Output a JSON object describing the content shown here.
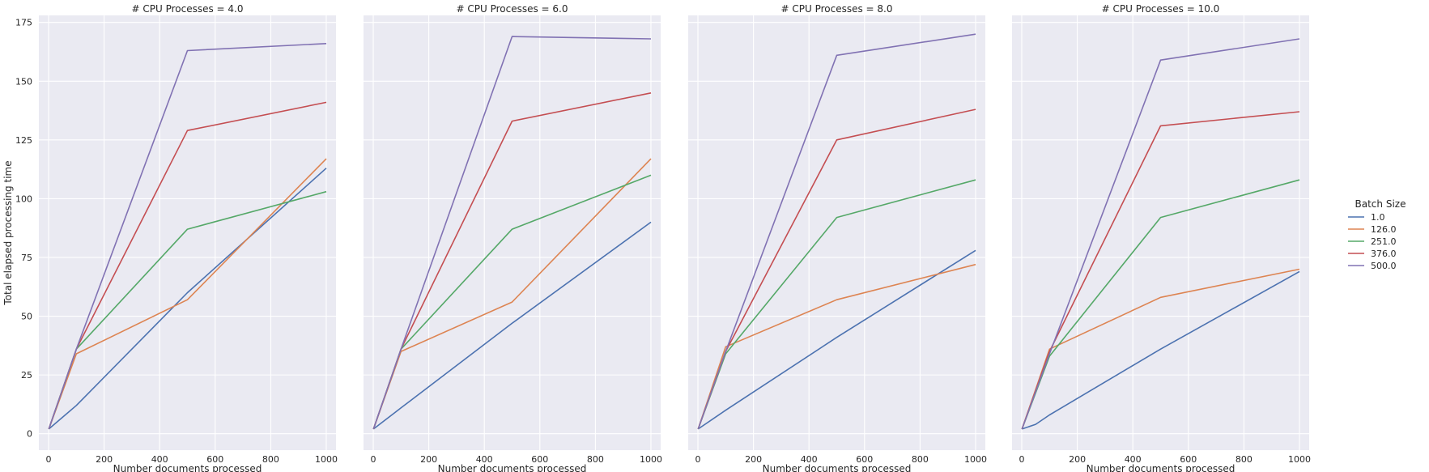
{
  "chart_data": {
    "type": "line",
    "facet_titles": [
      "# CPU Processes = 4.0",
      "# CPU Processes = 6.0",
      "# CPU Processes = 8.0",
      "# CPU Processes = 10.0"
    ],
    "xlabel": "Number documents processed",
    "ylabel": "Total elapsed processing time",
    "xlim": [
      -35,
      1035
    ],
    "ylim": [
      -7,
      178
    ],
    "xticks": [
      0,
      200,
      400,
      600,
      800,
      1000
    ],
    "yticks": [
      0,
      25,
      50,
      75,
      100,
      125,
      150,
      175
    ],
    "grid": true,
    "legend": {
      "title": "Batch Size",
      "placement": "right",
      "entries": [
        "1.0",
        "126.0",
        "251.0",
        "376.0",
        "500.0"
      ]
    },
    "colors": [
      "#4c72b0",
      "#dd8452",
      "#55a868",
      "#c44e52",
      "#8172b3"
    ],
    "panels": [
      {
        "series": [
          {
            "name": "1.0",
            "x": [
              1,
              100,
              500,
              1000
            ],
            "y": [
              2,
              12,
              60,
              113
            ]
          },
          {
            "name": "126.0",
            "x": [
              1,
              100,
              500,
              1000
            ],
            "y": [
              2,
              34,
              57,
              117
            ]
          },
          {
            "name": "251.0",
            "x": [
              1,
              100,
              500,
              1000
            ],
            "y": [
              2,
              36,
              87,
              103
            ]
          },
          {
            "name": "376.0",
            "x": [
              1,
              100,
              500,
              1000
            ],
            "y": [
              2,
              36,
              129,
              141
            ]
          },
          {
            "name": "500.0",
            "x": [
              1,
              100,
              500,
              1000
            ],
            "y": [
              2,
              36,
              163,
              166
            ]
          }
        ]
      },
      {
        "series": [
          {
            "name": "1.0",
            "x": [
              1,
              100,
              500,
              1000
            ],
            "y": [
              2,
              11,
              47,
              90
            ]
          },
          {
            "name": "126.0",
            "x": [
              1,
              100,
              500,
              1000
            ],
            "y": [
              2,
              35,
              56,
              117
            ]
          },
          {
            "name": "251.0",
            "x": [
              1,
              100,
              500,
              1000
            ],
            "y": [
              2,
              36,
              87,
              110
            ]
          },
          {
            "name": "376.0",
            "x": [
              1,
              100,
              500,
              1000
            ],
            "y": [
              2,
              36,
              133,
              145
            ]
          },
          {
            "name": "500.0",
            "x": [
              1,
              100,
              500,
              1000
            ],
            "y": [
              2,
              36,
              169,
              168
            ]
          }
        ]
      },
      {
        "series": [
          {
            "name": "1.0",
            "x": [
              1,
              100,
              500,
              1000
            ],
            "y": [
              2,
              10,
              41,
              78
            ]
          },
          {
            "name": "126.0",
            "x": [
              1,
              100,
              500,
              1000
            ],
            "y": [
              2,
              37,
              57,
              72
            ]
          },
          {
            "name": "251.0",
            "x": [
              1,
              100,
              500,
              1000
            ],
            "y": [
              2,
              34,
              92,
              108
            ]
          },
          {
            "name": "376.0",
            "x": [
              1,
              100,
              500,
              1000
            ],
            "y": [
              2,
              35,
              125,
              138
            ]
          },
          {
            "name": "500.0",
            "x": [
              1,
              100,
              500,
              1000
            ],
            "y": [
              2,
              35,
              161,
              170
            ]
          }
        ]
      },
      {
        "series": [
          {
            "name": "1.0",
            "x": [
              1,
              50,
              100,
              500,
              1000
            ],
            "y": [
              2,
              4,
              8,
              36,
              69
            ]
          },
          {
            "name": "126.0",
            "x": [
              1,
              100,
              500,
              1000
            ],
            "y": [
              2,
              36,
              58,
              70
            ]
          },
          {
            "name": "251.0",
            "x": [
              1,
              100,
              500,
              1000
            ],
            "y": [
              2,
              33,
              92,
              108
            ]
          },
          {
            "name": "376.0",
            "x": [
              1,
              100,
              500,
              1000
            ],
            "y": [
              2,
              35,
              131,
              137
            ]
          },
          {
            "name": "500.0",
            "x": [
              1,
              100,
              500,
              1000
            ],
            "y": [
              2,
              34,
              159,
              168
            ]
          }
        ]
      }
    ]
  }
}
